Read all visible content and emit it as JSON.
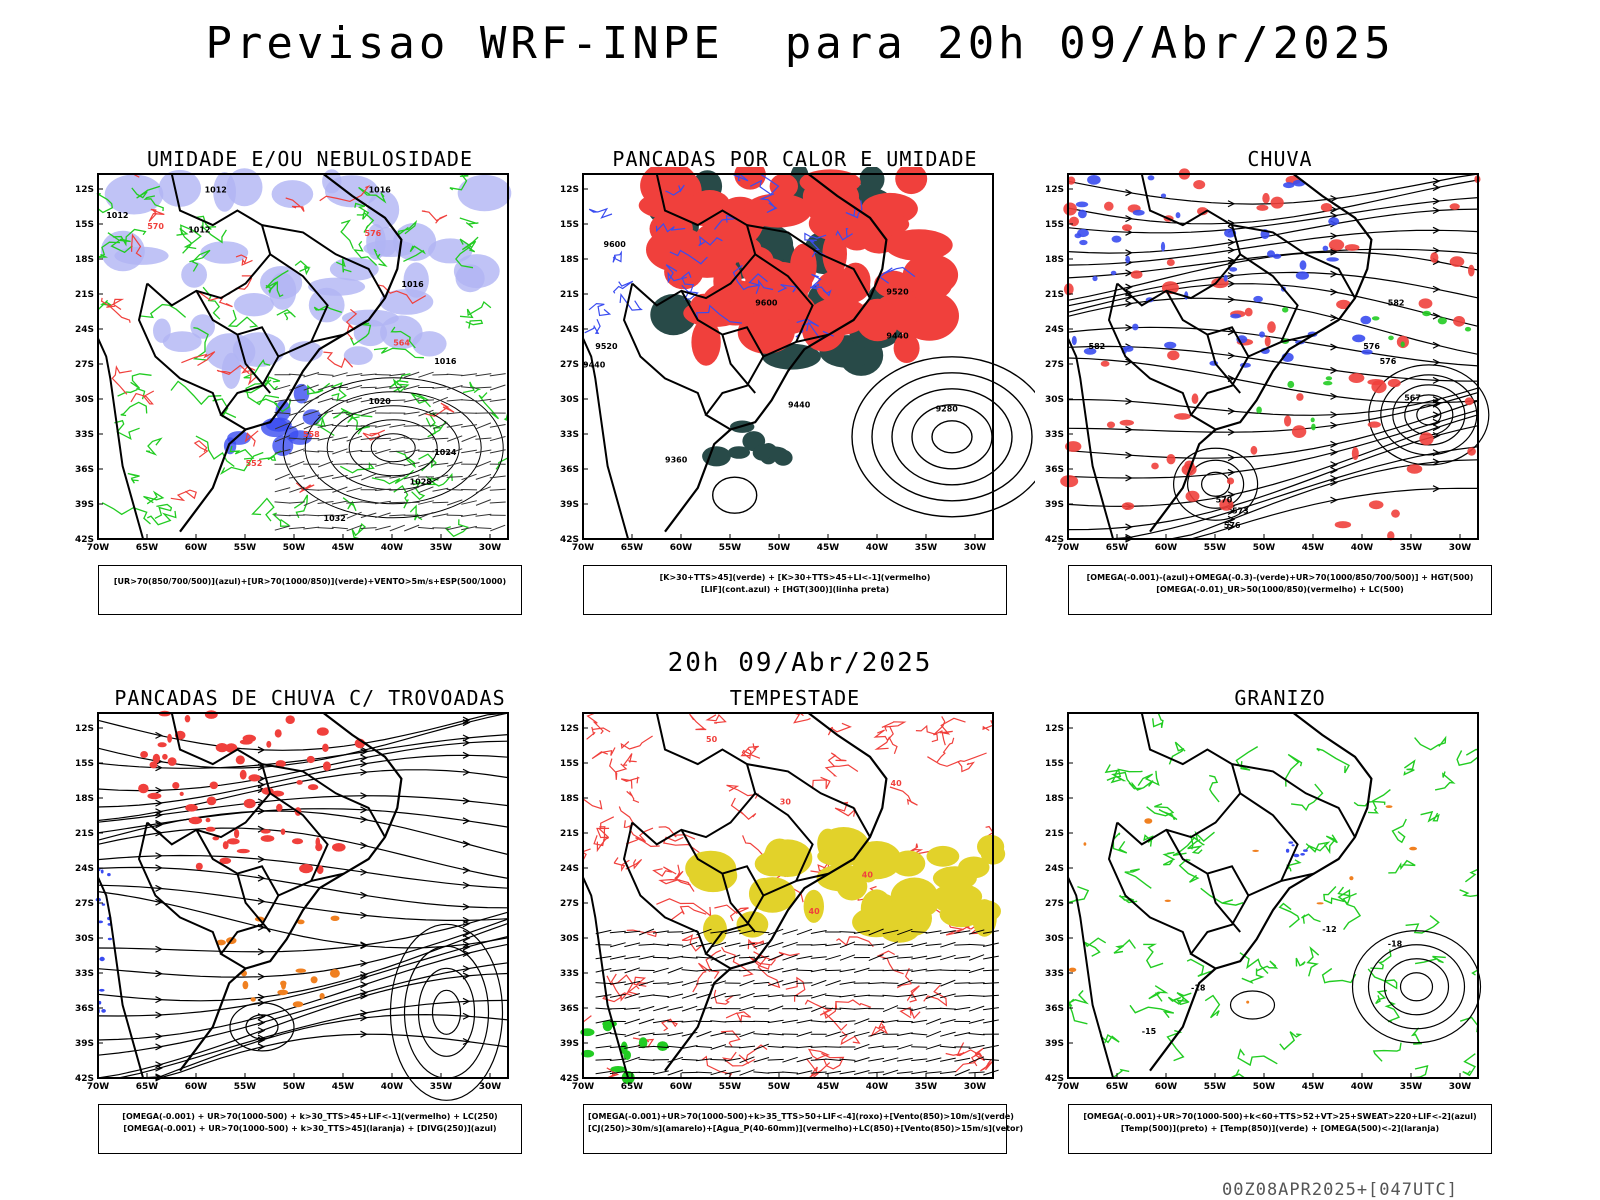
{
  "header": {
    "title": "Previsao WRF-INPE  para 20h 09/Abr/2025"
  },
  "mid_title": "20h 09/Abr/2025",
  "footer": "00Z08APR2025+[047UTC]",
  "axes": {
    "lat_labels": [
      "12S",
      "15S",
      "18S",
      "21S",
      "24S",
      "27S",
      "30S",
      "33S",
      "36S",
      "39S",
      "42S"
    ],
    "lon_labels": [
      "70W",
      "65W",
      "60W",
      "55W",
      "50W",
      "45W",
      "40W",
      "35W",
      "30W"
    ]
  },
  "panels": [
    {
      "title": "UMIDADE E/OU NEBULOSIDADE",
      "legend": [
        "[UR>70(850/700/500)](azul)+[UR>70(1000/850)](verde)+VENTO>5m/s+ESP(500/1000)"
      ],
      "labels": [
        "1012",
        "1012",
        "1012",
        "1016",
        "1016",
        "1016",
        "1020",
        "1024",
        "1028",
        "1032",
        "570",
        "576",
        "564",
        "558",
        "552"
      ]
    },
    {
      "title": "PANCADAS POR CALOR E UMIDADE",
      "legend": [
        "[K>30+TTS>45](verde) + [K>30+TTS>45+LI<-1](vermelho)",
        "[LIF](cont.azul) + [HGT(300)](linha preta)"
      ],
      "labels": [
        "9600",
        "9600",
        "9520",
        "9520",
        "9440",
        "9440",
        "9440",
        "9360",
        "9280"
      ]
    },
    {
      "title": "CHUVA",
      "legend": [
        "[OMEGA(-0.001)-(azul)+OMEGA(-0.3)-(verde)+UR>70(1000/850/700/500)] + HGT(500)",
        "[OMEGA(-0.01)_UR>50(1000/850)(vermelho) + LC(500)"
      ],
      "labels": [
        "582",
        "582",
        "576",
        "576",
        "570",
        "573",
        "576",
        "567"
      ]
    },
    {
      "title": "PANCADAS DE CHUVA C/ TROVOADAS",
      "legend": [
        "[OMEGA(-0.001) + UR>70(1000-500) + k>30_TTS>45+LIF<-1](vermelho) + LC(250)",
        "[OMEGA(-0.001) + UR>70(1000-500) + k>30_TTS>45](laranja) + [DIVG(250)](azul)"
      ],
      "labels": []
    },
    {
      "title": "TEMPESTADE",
      "legend": [
        "[OMEGA(-0.001)+UR>70(1000-500)+k>35_TTS>50+LIF<-4](roxo)+[Vento(850)>10m/s](verde)",
        "[CJ(250)>30m/s](amarelo)+[Agua_P(40-60mm)](vermelho)+LC(850)+[Vento(850)>15m/s](vetor)"
      ],
      "labels": [
        "40",
        "40",
        "40",
        "50",
        "30"
      ]
    },
    {
      "title": "GRANIZO",
      "legend": [
        "[OMEGA(-0.001)+UR>70(1000-500)+k<60+TTS>52+VT>25+SWEAT>220+LIF<-2](azul)",
        "[Temp(500)](preto) + [Temp(850)](verde) + [OMEGA(500)<-2](laranja)"
      ],
      "labels": [
        "-12",
        "-18",
        "-18",
        "-15"
      ]
    }
  ],
  "colors": {
    "red": "#f0403c",
    "green": "#22cc22",
    "blue": "#3a4cf0",
    "lavender": "#b0b4f4",
    "darkteal": "#284a48",
    "yellow": "#e2d22a",
    "orange": "#f08020",
    "black": "#000000"
  }
}
